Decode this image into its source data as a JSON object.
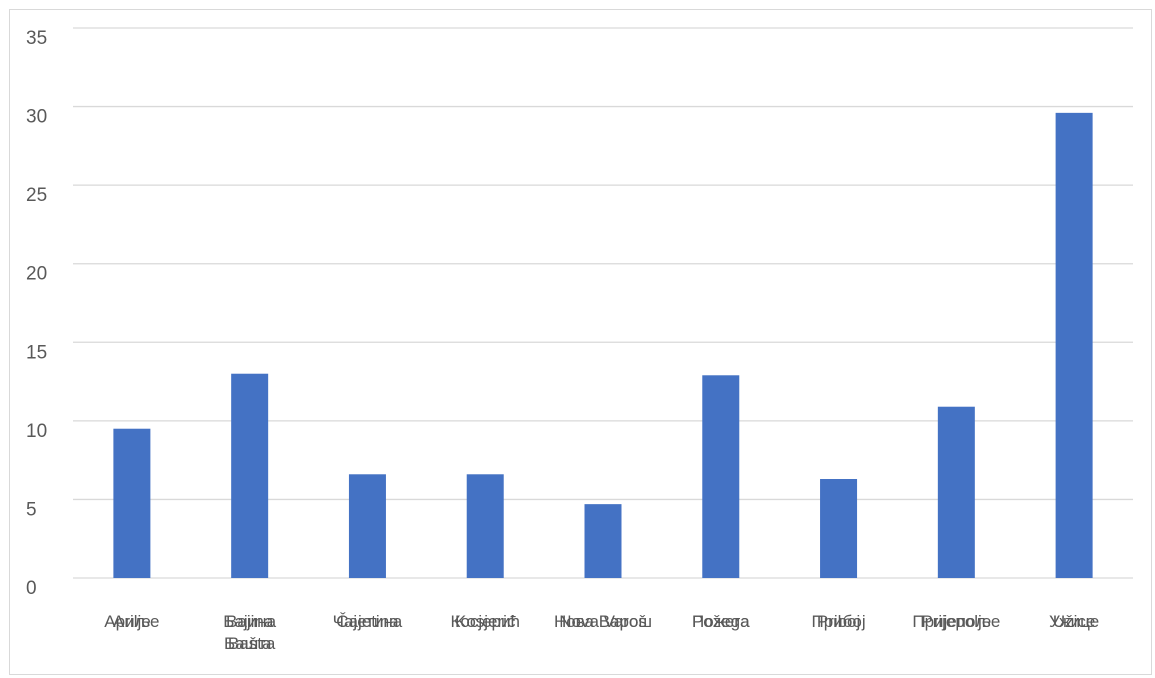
{
  "chart_data": {
    "type": "bar",
    "categories": [
      "Arilje",
      "Bajina Bašta",
      "Čajetina",
      "Kosjerić",
      "Nova Varoš",
      "Požega",
      "Priboj",
      "Prijepolje",
      "Užice"
    ],
    "categories_overlay": [
      "Ариље",
      "Бајина Башта",
      "Чајетина",
      "Косјерић",
      "Нова Варош",
      "Пожега",
      "Прибој",
      "Пријепоље",
      "Ужице"
    ],
    "series": [
      {
        "values": [
          9.5,
          13.0,
          6.6,
          6.6,
          4.7,
          12.9,
          6.3,
          10.9,
          29.6
        ]
      }
    ],
    "ylim": [
      0,
      35
    ],
    "yticks": [
      "0",
      "5",
      "10",
      "15",
      "20",
      "25",
      "30",
      "35"
    ],
    "grid": true,
    "bar_color": "#4472c4",
    "grid_color": "#d9d9d9",
    "title": "",
    "xlabel": "",
    "ylabel": ""
  }
}
